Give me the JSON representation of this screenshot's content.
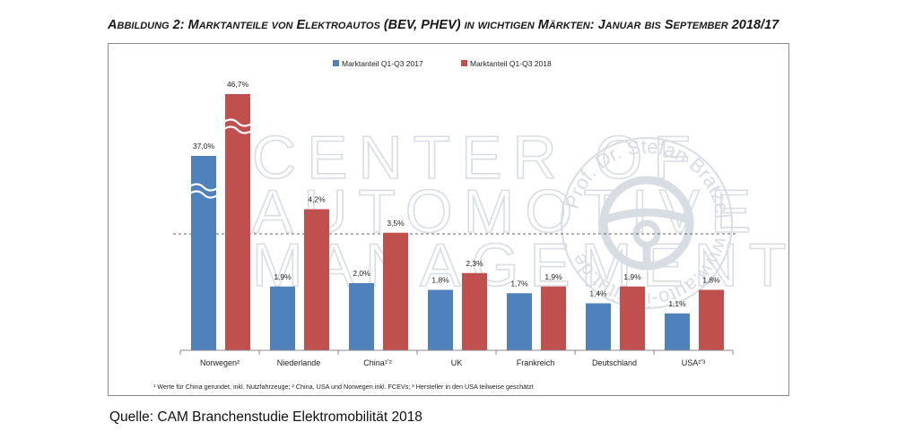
{
  "figure_title": "Abbildung 2: Marktanteile von Elektroautos (BEV, PHEV) in wichtigen Märkten: Januar bis September 2018/17",
  "source": "Quelle: CAM Branchenstudie Elektromobilität 2018",
  "footnote": "¹ Werte für China gerundet, inkl. Nutzfahrzeuge; ² China, USA und Norwegen inkl. FCEVs; ³ Hersteller in den USA teilweise geschätzt",
  "watermark": {
    "lines": [
      "CENTER OF",
      "AUTOMOTIVE",
      "MANAGEMENT"
    ],
    "seal_text": "Prof. Dr. Stefan Bratzel · www.auto-institut.de",
    "seal_icon": "steering-wheel-icon"
  },
  "colors": {
    "series_2017": "#4f81bd",
    "series_2018": "#c0504d",
    "axis": "#8a8a8a"
  },
  "chart_data": {
    "type": "bar",
    "title": "Marktanteile von Elektroautos (BEV, PHEV) in wichtigen Märkten: Januar bis September 2018/17",
    "categories": [
      "Norwegen²",
      "Niederlande",
      "China¹ʼ²",
      "UK",
      "Frankreich",
      "Deutschland",
      "USA²ʼ³"
    ],
    "series": [
      {
        "name": "Marktanteil Q1-Q3 2017",
        "values": [
          37.0,
          1.9,
          2.0,
          1.8,
          1.7,
          1.4,
          1.1
        ],
        "labels": [
          "37,0%",
          "1,9%",
          "2,0%",
          "1,8%",
          "1,7%",
          "1,4%",
          "1,1%"
        ]
      },
      {
        "name": "Marktanteil Q1-Q3 2018",
        "values": [
          46.7,
          4.2,
          3.5,
          2.3,
          1.9,
          1.9,
          1.8
        ],
        "labels": [
          "46,7%",
          "4,2%",
          "3,5%",
          "2,3%",
          "1,9%",
          "1,9%",
          "1,8%"
        ]
      }
    ],
    "ylim": [
      0,
      6
    ],
    "axis_break": true,
    "grid": false,
    "legend_position": "top-center",
    "xlabel": "",
    "ylabel": ""
  }
}
